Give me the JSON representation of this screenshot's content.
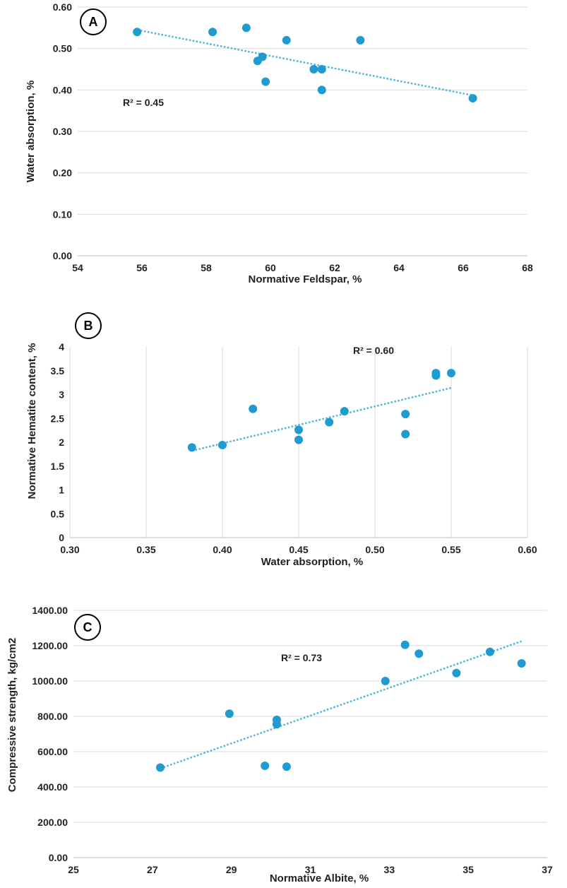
{
  "colors": {
    "point": "#1f9bd1",
    "trend": "#4fb3de",
    "grid": "#d9d9d9"
  },
  "chart_data": [
    {
      "type": "scatter",
      "panel_label": "A",
      "xlabel": "Normative Feldspar, %",
      "ylabel": "Water absorption, %",
      "xlim": [
        54,
        68
      ],
      "ylim": [
        0,
        0.6
      ],
      "x_ticks": [
        "54",
        "56",
        "58",
        "60",
        "62",
        "64",
        "66",
        "68"
      ],
      "y_ticks": [
        "0.00",
        "0.10",
        "0.20",
        "0.30",
        "0.40",
        "0.50",
        "0.60"
      ],
      "x_grid": false,
      "y_grid": true,
      "annotation": "R² = 0.45",
      "trendline": [
        [
          55.85,
          0.545
        ],
        [
          66.3,
          0.387
        ]
      ],
      "points": [
        [
          55.85,
          0.54
        ],
        [
          58.2,
          0.54
        ],
        [
          59.25,
          0.55
        ],
        [
          59.6,
          0.47
        ],
        [
          59.75,
          0.48
        ],
        [
          59.85,
          0.42
        ],
        [
          60.5,
          0.52
        ],
        [
          61.35,
          0.45
        ],
        [
          61.6,
          0.45
        ],
        [
          61.6,
          0.4
        ],
        [
          62.8,
          0.52
        ],
        [
          66.3,
          0.38
        ]
      ]
    },
    {
      "type": "scatter",
      "panel_label": "B",
      "xlabel": "Water absorption, %",
      "ylabel": "Normative Hematite content, %",
      "xlim": [
        0.3,
        0.6
      ],
      "ylim": [
        0,
        4
      ],
      "x_ticks": [
        "0.30",
        "0.35",
        "0.40",
        "0.45",
        "0.50",
        "0.55",
        "0.60"
      ],
      "y_ticks": [
        "0",
        "0.5",
        "1",
        "1.5",
        "2",
        "2.5",
        "3",
        "3.5",
        "4"
      ],
      "x_grid": true,
      "y_grid": false,
      "annotation": "R² = 0.60",
      "trendline": [
        [
          0.38,
          1.82
        ],
        [
          0.55,
          3.14
        ]
      ],
      "points": [
        [
          0.38,
          1.89
        ],
        [
          0.4,
          1.94
        ],
        [
          0.42,
          2.7
        ],
        [
          0.45,
          2.26
        ],
        [
          0.45,
          2.05
        ],
        [
          0.47,
          2.42
        ],
        [
          0.48,
          2.65
        ],
        [
          0.52,
          2.59
        ],
        [
          0.52,
          2.17
        ],
        [
          0.54,
          3.45
        ],
        [
          0.54,
          3.4
        ],
        [
          0.55,
          3.45
        ]
      ]
    },
    {
      "type": "scatter",
      "panel_label": "C",
      "xlabel": "Normative Albite, %",
      "ylabel": "Compressive strength, kg/cm2",
      "xlim": [
        25,
        37
      ],
      "ylim": [
        0,
        1400
      ],
      "x_ticks": [
        "25",
        "27",
        "29",
        "31",
        "33",
        "35",
        "37"
      ],
      "y_ticks": [
        "0.00",
        "200.00",
        "400.00",
        "600.00",
        "800.00",
        "1000.00",
        "1200.00",
        "1400.00"
      ],
      "x_grid": false,
      "y_grid": true,
      "annotation": "R² = 0.73",
      "trendline": [
        [
          27.2,
          505
        ],
        [
          36.35,
          1225
        ]
      ],
      "points": [
        [
          27.2,
          510
        ],
        [
          28.95,
          815
        ],
        [
          29.85,
          520
        ],
        [
          30.15,
          780
        ],
        [
          30.15,
          755
        ],
        [
          30.4,
          515
        ],
        [
          32.9,
          1000
        ],
        [
          33.4,
          1205
        ],
        [
          33.75,
          1155
        ],
        [
          34.7,
          1045
        ],
        [
          35.55,
          1165
        ],
        [
          36.35,
          1100
        ]
      ]
    }
  ]
}
